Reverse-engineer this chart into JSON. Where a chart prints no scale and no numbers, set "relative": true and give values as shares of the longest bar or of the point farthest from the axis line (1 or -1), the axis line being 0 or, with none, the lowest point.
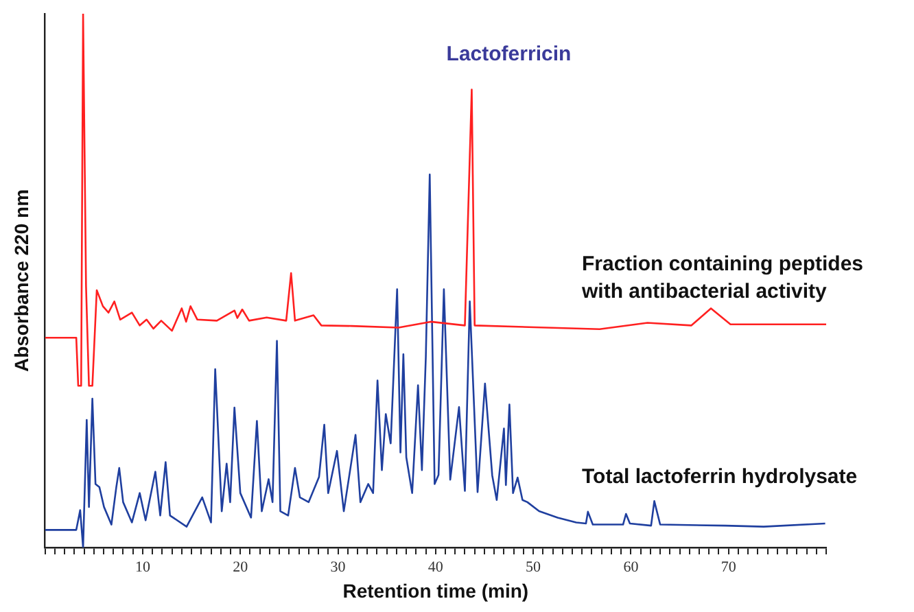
{
  "chart_data": {
    "type": "line",
    "relative": true,
    "xlabel": "Retention time (min)",
    "ylabel": "Absorbance 220 nm",
    "xlim": [
      0,
      80
    ],
    "xticks": [
      {
        "value": 0,
        "label": null
      },
      {
        "value": 1,
        "label": null
      },
      {
        "value": 2,
        "label": null
      },
      {
        "value": 3,
        "label": null
      },
      {
        "value": 4,
        "label": null
      },
      {
        "value": 5,
        "label": null
      },
      {
        "value": 6,
        "label": null
      },
      {
        "value": 7,
        "label": null
      },
      {
        "value": 8,
        "label": null
      },
      {
        "value": 9,
        "label": null
      },
      10,
      {
        "value": 11,
        "label": null
      },
      {
        "value": 12,
        "label": null
      },
      {
        "value": 13,
        "label": null
      },
      {
        "value": 14,
        "label": null
      },
      {
        "value": 15,
        "label": null
      },
      {
        "value": 16,
        "label": null
      },
      {
        "value": 17,
        "label": null
      },
      {
        "value": 18,
        "label": null
      },
      {
        "value": 19,
        "label": null
      },
      20,
      {
        "value": 21,
        "label": null
      },
      {
        "value": 22,
        "label": null
      },
      {
        "value": 23,
        "label": null
      },
      {
        "value": 24,
        "label": null
      },
      {
        "value": 25,
        "label": null
      },
      {
        "value": 26,
        "label": null
      },
      {
        "value": 27,
        "label": null
      },
      {
        "value": 28,
        "label": null
      },
      {
        "value": 29,
        "label": null
      },
      30,
      {
        "value": 31,
        "label": null
      },
      {
        "value": 32,
        "label": null
      },
      {
        "value": 33,
        "label": null
      },
      {
        "value": 34,
        "label": null
      },
      {
        "value": 35,
        "label": null
      },
      {
        "value": 36,
        "label": null
      },
      {
        "value": 37,
        "label": null
      },
      {
        "value": 38,
        "label": null
      },
      {
        "value": 39,
        "label": null
      },
      40,
      {
        "value": 41,
        "label": null
      },
      {
        "value": 42,
        "label": null
      },
      {
        "value": 43,
        "label": null
      },
      {
        "value": 44,
        "label": null
      },
      {
        "value": 45,
        "label": null
      },
      {
        "value": 46,
        "label": null
      },
      {
        "value": 47,
        "label": null
      },
      {
        "value": 48,
        "label": null
      },
      {
        "value": 49,
        "label": null
      },
      50,
      {
        "value": 51,
        "label": null
      },
      {
        "value": 52,
        "label": null
      },
      {
        "value": 53,
        "label": null
      },
      {
        "value": 54,
        "label": null
      },
      {
        "value": 55,
        "label": null
      },
      {
        "value": 56,
        "label": null
      },
      {
        "value": 57,
        "label": null
      },
      {
        "value": 58,
        "label": null
      },
      {
        "value": 59,
        "label": null
      },
      60,
      {
        "value": 61,
        "label": null
      },
      {
        "value": 62,
        "label": null
      },
      {
        "value": 63,
        "label": null
      },
      {
        "value": 64,
        "label": null
      },
      {
        "value": 65,
        "label": null
      },
      {
        "value": 66,
        "label": null
      },
      {
        "value": 67,
        "label": null
      },
      {
        "value": 68,
        "label": null
      },
      {
        "value": 69,
        "label": null
      },
      70,
      {
        "value": 71,
        "label": null
      },
      {
        "value": 72,
        "label": null
      },
      {
        "value": 73,
        "label": null
      },
      {
        "value": 74,
        "label": null
      },
      {
        "value": 75,
        "label": null
      },
      {
        "value": 76,
        "label": null
      },
      {
        "value": 77,
        "label": null
      },
      {
        "value": 78,
        "label": null
      },
      {
        "value": 79,
        "label": null
      },
      {
        "value": 80,
        "label": null
      }
    ],
    "grid": false,
    "legend": false,
    "annotations": [
      {
        "text": "Lactoferricin",
        "x": 43.7,
        "y": 0.858
      }
    ],
    "series": [
      {
        "name": "Fraction containing peptides with antibacterial activity",
        "color": "#ff2020",
        "x": [
          0,
          3.2,
          3.4,
          3.7,
          3.9,
          4.2,
          4.5,
          4.85,
          5.3,
          5.93,
          6.5,
          7.1,
          7.7,
          8.9,
          9.7,
          10.4,
          11.1,
          11.9,
          13.0,
          14.0,
          14.45,
          14.9,
          15.6,
          17.6,
          19.4,
          19.7,
          20.2,
          20.9,
          22.7,
          24.7,
          25.2,
          25.6,
          27.5,
          28.3,
          31.4,
          36.2,
          39.5,
          43.0,
          43.7,
          44.0,
          56.8,
          61.7,
          66.2,
          68.2,
          70.2,
          80
        ],
        "values": [
          0.393,
          0.393,
          0.303,
          0.303,
          1.0,
          0.49,
          0.303,
          0.303,
          0.482,
          0.452,
          0.44,
          0.461,
          0.427,
          0.44,
          0.416,
          0.427,
          0.41,
          0.425,
          0.406,
          0.448,
          0.423,
          0.452,
          0.427,
          0.425,
          0.444,
          0.43,
          0.446,
          0.425,
          0.431,
          0.425,
          0.514,
          0.425,
          0.435,
          0.416,
          0.415,
          0.412,
          0.423,
          0.416,
          0.858,
          0.416,
          0.409,
          0.421,
          0.416,
          0.448,
          0.418,
          0.418
        ]
      },
      {
        "name": "Total lactoferrin hydrolysate",
        "color": "#1f3f9f",
        "x": [
          0,
          3.2,
          3.6,
          3.9,
          4.27,
          4.5,
          4.85,
          5.17,
          5.57,
          6.04,
          6.8,
          7.3,
          7.6,
          8.0,
          8.9,
          9.7,
          10.3,
          11.3,
          11.8,
          12.35,
          12.8,
          14.5,
          16.1,
          17.0,
          17.43,
          18.1,
          18.6,
          18.96,
          19.4,
          20.0,
          21.1,
          21.7,
          22.2,
          22.9,
          23.3,
          23.75,
          24.1,
          24.9,
          25.6,
          26.1,
          27.0,
          28.06,
          28.6,
          29.0,
          29.9,
          30.6,
          31.8,
          32.3,
          33.1,
          33.6,
          34.05,
          34.5,
          34.9,
          35.4,
          36.06,
          36.4,
          36.7,
          37.0,
          37.6,
          38.2,
          38.6,
          39.0,
          39.4,
          39.9,
          40.3,
          40.85,
          41.5,
          42.4,
          43.0,
          43.5,
          44.3,
          45.06,
          45.8,
          46.26,
          47.0,
          47.2,
          47.56,
          47.93,
          48.4,
          48.9,
          49.4,
          50.6,
          52.5,
          54.4,
          55.4,
          55.6,
          56.1,
          59.2,
          59.5,
          59.9,
          62.07,
          62.4,
          63.0,
          69.7,
          73.6,
          79.9
        ],
        "values": [
          0.033,
          0.033,
          0.07,
          0.0,
          0.239,
          0.076,
          0.279,
          0.119,
          0.113,
          0.076,
          0.043,
          0.113,
          0.149,
          0.085,
          0.047,
          0.102,
          0.051,
          0.142,
          0.06,
          0.16,
          0.06,
          0.039,
          0.094,
          0.047,
          0.334,
          0.068,
          0.157,
          0.085,
          0.262,
          0.102,
          0.056,
          0.237,
          0.068,
          0.128,
          0.085,
          0.387,
          0.068,
          0.06,
          0.149,
          0.094,
          0.085,
          0.132,
          0.23,
          0.102,
          0.181,
          0.068,
          0.211,
          0.085,
          0.119,
          0.102,
          0.313,
          0.145,
          0.25,
          0.195,
          0.484,
          0.178,
          0.362,
          0.169,
          0.102,
          0.304,
          0.145,
          0.357,
          0.699,
          0.119,
          0.136,
          0.484,
          0.127,
          0.263,
          0.106,
          0.461,
          0.104,
          0.307,
          0.135,
          0.089,
          0.223,
          0.117,
          0.268,
          0.102,
          0.131,
          0.089,
          0.085,
          0.068,
          0.056,
          0.047,
          0.045,
          0.067,
          0.043,
          0.043,
          0.063,
          0.045,
          0.041,
          0.087,
          0.043,
          0.041,
          0.039,
          0.045
        ]
      }
    ]
  }
}
